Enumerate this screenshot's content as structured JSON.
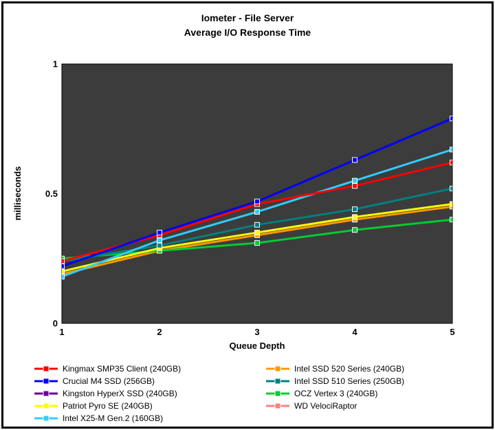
{
  "title": {
    "line1": "Iometer - File Server",
    "line2": "Average I/O Response Time"
  },
  "chart_data": {
    "type": "line",
    "x": [
      1,
      2,
      3,
      4,
      5
    ],
    "xtick_labels": [
      "1",
      "2",
      "3",
      "4",
      "5"
    ],
    "yticks": [
      {
        "value": 1,
        "label": "1"
      },
      {
        "value": 0.5,
        "label": "0.5"
      },
      {
        "value": 0,
        "label": "0"
      }
    ],
    "xlabel": "Queue Depth",
    "ylabel": "milliseconds",
    "ylim": [
      0,
      1
    ],
    "plot_background": "#3c3c3c",
    "grid": false,
    "legend_position": "bottom",
    "marker": "square",
    "series": [
      {
        "name": "Kingston HyperX SSD (240GB)",
        "color": "#660099",
        "values": []
      },
      {
        "name": "WD VelociRaptor",
        "color": "#ff8080",
        "values": []
      },
      {
        "name": "Intel SSD 520 Series (240GB)",
        "color": "#ff9900",
        "values": [
          0.19,
          0.28,
          0.34,
          0.4,
          0.45
        ]
      },
      {
        "name": "OCZ Vertex 3 (240GB)",
        "color": "#00cc33",
        "values": [
          0.25,
          0.28,
          0.31,
          0.36,
          0.4
        ]
      },
      {
        "name": "Patriot Pyro SE (240GB)",
        "color": "#ffff00",
        "values": [
          0.2,
          0.29,
          0.35,
          0.41,
          0.46
        ]
      },
      {
        "name": "Intel SSD 510 Series (250GB)",
        "color": "#008080",
        "values": [
          0.24,
          0.3,
          0.38,
          0.44,
          0.52
        ]
      },
      {
        "name": "Intel X25-M Gen.2 (160GB)",
        "color": "#33ccff",
        "values": [
          0.18,
          0.32,
          0.43,
          0.55,
          0.67
        ]
      },
      {
        "name": "Kingmax SMP35 Client (240GB)",
        "color": "#ff0000",
        "values": [
          0.24,
          0.34,
          0.46,
          0.53,
          0.62
        ]
      },
      {
        "name": "Crucial M4 SSD (256GB)",
        "color": "#0000ff",
        "values": [
          0.22,
          0.35,
          0.47,
          0.63,
          0.79
        ]
      }
    ],
    "legend": {
      "columns": [
        [
          "Kingmax SMP35 Client (240GB)",
          "Crucial M4 SSD (256GB)",
          "Kingston HyperX SSD (240GB)",
          "Patriot Pyro SE (240GB)",
          "Intel X25-M Gen.2 (160GB)"
        ],
        [
          "Intel SSD 520 Series (240GB)",
          "Intel SSD 510 Series (250GB)",
          "OCZ Vertex 3 (240GB)",
          "WD VelociRaptor"
        ]
      ]
    }
  }
}
